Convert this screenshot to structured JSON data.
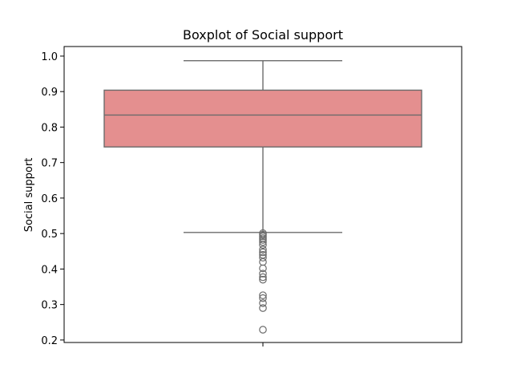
{
  "chart_data": {
    "type": "boxplot",
    "title": "Boxplot of Social support",
    "xlabel": "",
    "ylabel": "Social support",
    "ylim": [
      0.193,
      1.027
    ],
    "yticks": [
      0.2,
      0.3,
      0.4,
      0.5,
      0.6,
      0.7,
      0.8,
      0.9,
      1.0
    ],
    "ytick_labels": [
      "0.2",
      "0.3",
      "0.4",
      "0.5",
      "0.6",
      "0.7",
      "0.8",
      "0.9",
      "1.0"
    ],
    "grid": false,
    "box": {
      "whisker_low": 0.503,
      "q1": 0.744,
      "median": 0.834,
      "q3": 0.904,
      "whisker_high": 0.987,
      "fill": "#e48f8f",
      "edge": "#6b6b6b"
    },
    "outliers": [
      0.501,
      0.497,
      0.492,
      0.487,
      0.482,
      0.476,
      0.468,
      0.455,
      0.447,
      0.44,
      0.432,
      0.42,
      0.402,
      0.387,
      0.377,
      0.37,
      0.326,
      0.318,
      0.304,
      0.29,
      0.229
    ]
  }
}
